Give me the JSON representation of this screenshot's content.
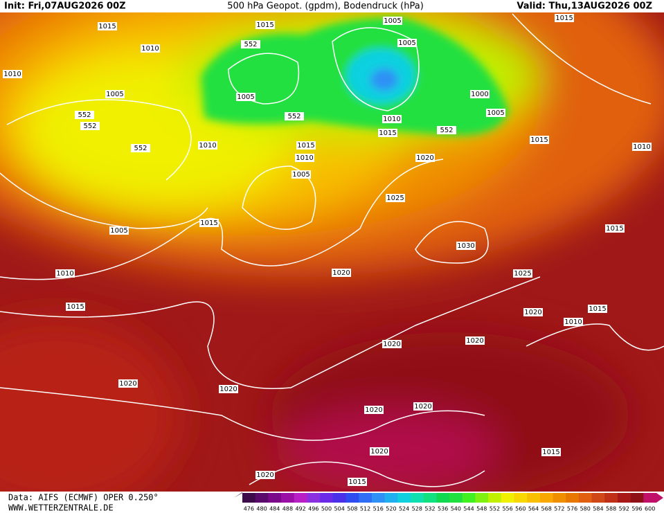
{
  "header": {
    "init": "Init: Fri,07AUG2026 00Z",
    "title": "500 hPa Geopot. (gpdm), Bodendruck (hPa)",
    "valid": "Valid: Thu,13AUG2026 00Z"
  },
  "isobar_labels": [
    "1015",
    "1015",
    "1005",
    "1015",
    "1010",
    "552",
    "1005",
    "1010",
    "1005",
    "1005",
    "1000",
    "552",
    "552",
    "552",
    "1010",
    "1005",
    "1015",
    "552",
    "552",
    "1010",
    "1015",
    "1015",
    "1010",
    "1010",
    "1020",
    "1005",
    "1025",
    "1015",
    "1005",
    "1015",
    "1030",
    "1010",
    "1020",
    "1025",
    "1015",
    "1015",
    "1020",
    "1010",
    "1020",
    "1020",
    "1020",
    "1020",
    "1020",
    "1020",
    "1020",
    "1015",
    "1020",
    "1015"
  ],
  "footer": {
    "data": "Data: AIFS (ECMWF) OPER 0.250°",
    "site": "WWW.WETTERZENTRALE.DE"
  },
  "colorbar": {
    "labels": [
      476,
      480,
      484,
      488,
      492,
      496,
      500,
      504,
      508,
      512,
      516,
      520,
      524,
      528,
      532,
      536,
      540,
      544,
      548,
      552,
      556,
      560,
      564,
      568,
      572,
      576,
      580,
      584,
      588,
      592,
      596,
      600
    ],
    "colors": [
      "#3d0a4a",
      "#5a0a6a",
      "#7a0a8a",
      "#9a10a6",
      "#b820c6",
      "#8a30e0",
      "#6a2ae8",
      "#4a30e8",
      "#2f4cf0",
      "#2f6ef5",
      "#2f90f5",
      "#20b0f0",
      "#10d0e0",
      "#10e0b0",
      "#10e080",
      "#10d850",
      "#20e040",
      "#40f020",
      "#80f010",
      "#c0f000",
      "#f0f000",
      "#f8d800",
      "#f8c000",
      "#f8a800",
      "#f09000",
      "#e87800",
      "#e06010",
      "#d04818",
      "#c03018",
      "#a81818",
      "#901018",
      "#c0106a"
    ]
  }
}
